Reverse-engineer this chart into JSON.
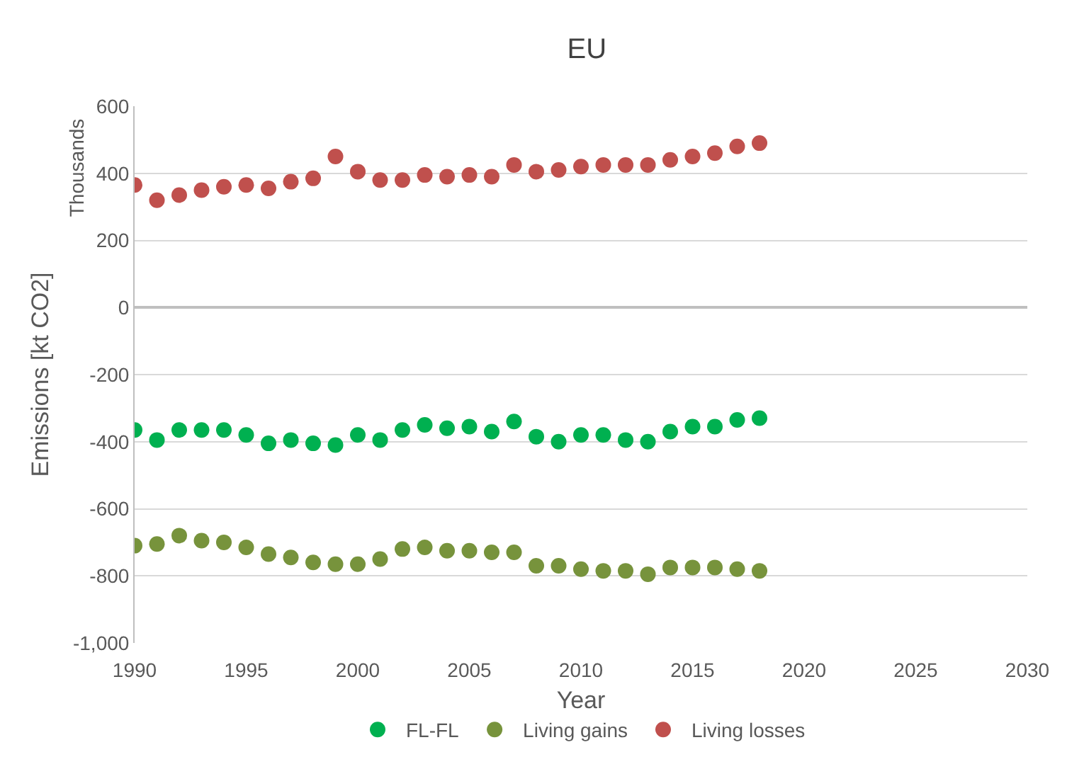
{
  "chart_data": {
    "type": "scatter",
    "title": "EU",
    "xlabel": "Year",
    "ylabel": "Emissions [kt CO2]",
    "annotations": [
      "Thousands"
    ],
    "x": [
      1990,
      1991,
      1992,
      1993,
      1994,
      1995,
      1996,
      1997,
      1998,
      1999,
      2000,
      2001,
      2002,
      2003,
      2004,
      2005,
      2006,
      2007,
      2008,
      2009,
      2010,
      2011,
      2012,
      2013,
      2014,
      2015,
      2016,
      2017,
      2018
    ],
    "series": [
      {
        "name": "FL-FL",
        "color": "#00b050",
        "values": [
          -365,
          -395,
          -365,
          -365,
          -365,
          -380,
          -405,
          -395,
          -405,
          -410,
          -380,
          -395,
          -365,
          -350,
          -360,
          -355,
          -370,
          -340,
          -385,
          -400,
          -380,
          -380,
          -395,
          -400,
          -370,
          -355,
          -355,
          -335,
          -330
        ]
      },
      {
        "name": "Living gains",
        "color": "#77933c",
        "values": [
          -710,
          -705,
          -680,
          -695,
          -700,
          -715,
          -735,
          -745,
          -760,
          -765,
          -765,
          -750,
          -720,
          -715,
          -725,
          -725,
          -730,
          -730,
          -770,
          -770,
          -780,
          -785,
          -785,
          -795,
          -775,
          -775,
          -775,
          -780,
          -785
        ]
      },
      {
        "name": "Living losses",
        "color": "#c0504d",
        "values": [
          365,
          320,
          335,
          350,
          360,
          365,
          355,
          375,
          385,
          450,
          405,
          380,
          380,
          395,
          390,
          395,
          390,
          425,
          405,
          410,
          420,
          425,
          425,
          425,
          440,
          450,
          460,
          480,
          490
        ]
      }
    ],
    "xlim": [
      1990,
      2030
    ],
    "xticks": [
      1990,
      1995,
      2000,
      2005,
      2010,
      2015,
      2020,
      2025,
      2030
    ],
    "ylim": [
      -1000,
      600
    ],
    "yticks": [
      {
        "value": -1000,
        "label": "-1,000"
      },
      -800,
      -600,
      -400,
      -200,
      0,
      200,
      400,
      600
    ],
    "grid": "y",
    "legend": "bottom",
    "marker": "circle"
  }
}
